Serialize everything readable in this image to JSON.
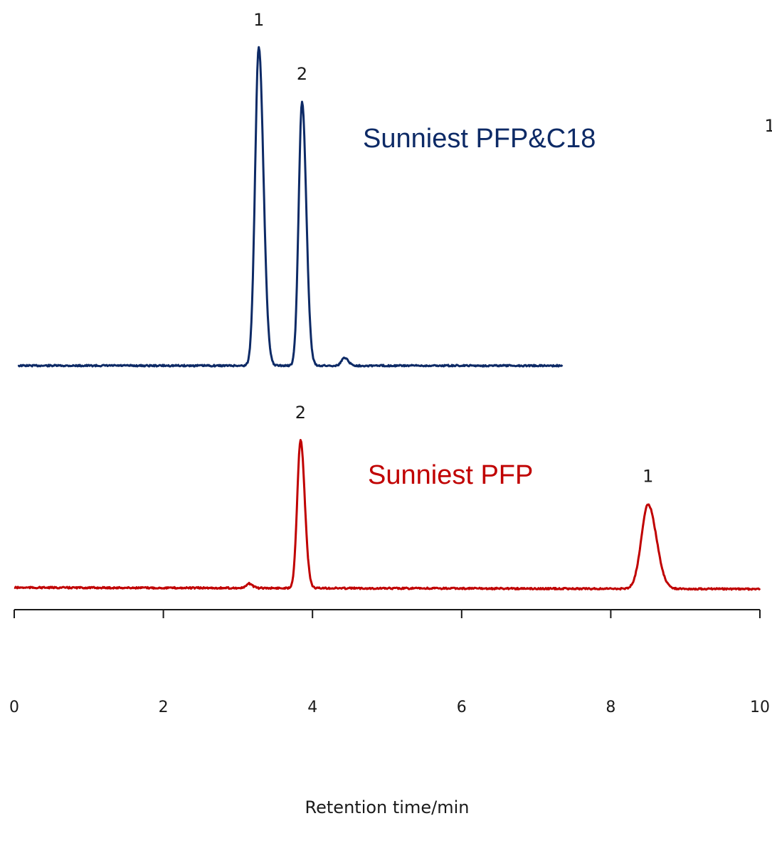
{
  "chart_data": {
    "type": "line",
    "xlabel": "Retention time/min",
    "xlim": [
      0,
      10
    ],
    "x_ticks": [
      0,
      2,
      4,
      6,
      8,
      10
    ],
    "x_tick_labels": [
      "0",
      "2",
      "4",
      "6",
      "8",
      "10"
    ],
    "grid": false,
    "series": [
      {
        "name": "Sunniest PFP&C18",
        "color": "#0d2a66",
        "x_range": [
          0.05,
          7.35
        ],
        "peaks": [
          {
            "label": "1",
            "rt": 3.28,
            "height": 1.0,
            "width": 0.05
          },
          {
            "label": "2",
            "rt": 3.86,
            "height": 0.83,
            "width": 0.045
          },
          {
            "label": "",
            "rt": 4.43,
            "height": 0.025,
            "width": 0.04
          }
        ]
      },
      {
        "name": "Sunniest PFP",
        "color": "#c00000",
        "x_range": [
          0.0,
          10.0
        ],
        "peaks": [
          {
            "label": "",
            "rt": 3.15,
            "height": 0.03,
            "width": 0.035
          },
          {
            "label": "2",
            "rt": 3.84,
            "height": 1.0,
            "width": 0.045
          },
          {
            "label": "1",
            "rt": 8.5,
            "height": 0.57,
            "width": 0.09
          }
        ]
      }
    ],
    "annotations": [
      "Sunniest PFP&C18",
      "Sunniest PFP"
    ],
    "clipped_text": "1"
  }
}
